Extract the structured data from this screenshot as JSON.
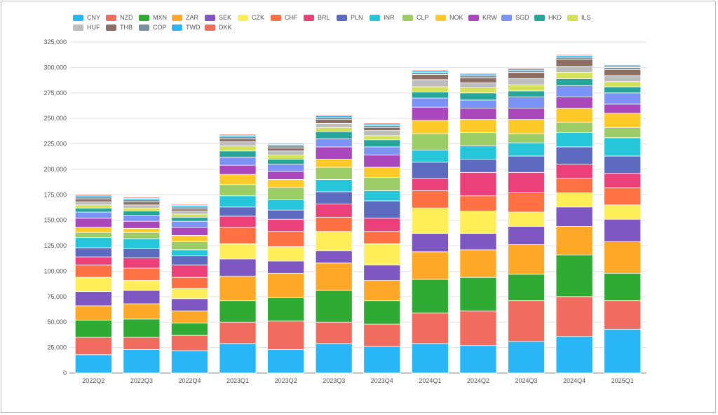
{
  "chart_data": {
    "type": "bar",
    "stacked": true,
    "title": "",
    "xlabel": "",
    "ylabel": "",
    "ylim": [
      0,
      325000
    ],
    "y_ticks": [
      "0",
      "25,000",
      "50,000",
      "75,000",
      "100,000",
      "125,000",
      "150,000",
      "175,000",
      "200,000",
      "225,000",
      "250,000",
      "275,000",
      "300,000",
      "325,000"
    ],
    "grid": true,
    "legend_position": "top",
    "categories": [
      "2022Q2",
      "2022Q3",
      "2022Q4",
      "2023Q1",
      "2023Q2",
      "2023Q3",
      "2023Q4",
      "2024Q1",
      "2024Q2",
      "2024Q3",
      "2024Q4",
      "2025Q1"
    ],
    "series": [
      {
        "name": "CNY",
        "color": "#29b6f6",
        "values": [
          18000,
          23000,
          22000,
          29000,
          23000,
          29000,
          26000,
          29000,
          27000,
          31000,
          36000,
          43000
        ]
      },
      {
        "name": "NZD",
        "color": "#ef6c5e",
        "values": [
          17000,
          12000,
          15000,
          21000,
          28000,
          21000,
          22000,
          30000,
          34000,
          40000,
          39000,
          28000
        ]
      },
      {
        "name": "MXN",
        "color": "#2fab33",
        "values": [
          17000,
          18000,
          12000,
          21000,
          23000,
          31000,
          23000,
          33000,
          33000,
          26000,
          41000,
          27000
        ]
      },
      {
        "name": "ZAR",
        "color": "#ffa726",
        "values": [
          14000,
          15000,
          12000,
          24000,
          24000,
          27000,
          20000,
          27000,
          27000,
          29000,
          28000,
          31000
        ]
      },
      {
        "name": "SEK",
        "color": "#7e57c2",
        "values": [
          14000,
          13000,
          12000,
          17000,
          12000,
          12000,
          15000,
          18000,
          16000,
          18000,
          19000,
          22000
        ]
      },
      {
        "name": "CZK",
        "color": "#ffee58",
        "values": [
          14000,
          10000,
          10000,
          15000,
          14000,
          19000,
          21000,
          25000,
          22000,
          14000,
          14000,
          14000
        ]
      },
      {
        "name": "CHF",
        "color": "#ff7043",
        "values": [
          12000,
          12000,
          11000,
          16000,
          15000,
          14000,
          12000,
          17000,
          15000,
          19000,
          14000,
          17000
        ]
      },
      {
        "name": "BRL",
        "color": "#ec407a",
        "values": [
          8000,
          10000,
          12000,
          11000,
          12000,
          13000,
          13000,
          12000,
          23000,
          20000,
          14000,
          14000
        ]
      },
      {
        "name": "PLN",
        "color": "#5c6bc0",
        "values": [
          9000,
          9000,
          9000,
          9000,
          9000,
          12000,
          17000,
          16000,
          13000,
          16000,
          17000,
          17000
        ]
      },
      {
        "name": "INR",
        "color": "#26c6da",
        "values": [
          10000,
          10000,
          6000,
          11000,
          10000,
          12000,
          10000,
          12000,
          13000,
          13000,
          14000,
          18000
        ]
      },
      {
        "name": "CLP",
        "color": "#9ccc65",
        "values": [
          5000,
          6000,
          8000,
          11000,
          12000,
          12000,
          13000,
          16000,
          13000,
          9000,
          10000,
          10000
        ]
      },
      {
        "name": "NOK",
        "color": "#ffca28",
        "values": [
          5000,
          4000,
          6000,
          10000,
          8000,
          8000,
          10000,
          13000,
          13000,
          14000,
          14000,
          14000
        ]
      },
      {
        "name": "KRW",
        "color": "#ab47bc",
        "values": [
          9000,
          7000,
          8000,
          9000,
          8000,
          12000,
          12000,
          13000,
          11000,
          11000,
          11000,
          9000
        ]
      },
      {
        "name": "SGD",
        "color": "#7b93f7",
        "values": [
          6000,
          6000,
          6000,
          8000,
          7000,
          8000,
          8000,
          9000,
          8000,
          11000,
          11000,
          11000
        ]
      },
      {
        "name": "HKD",
        "color": "#26a69a",
        "values": [
          4000,
          4000,
          4000,
          6000,
          5000,
          7000,
          7000,
          6000,
          7000,
          6000,
          7000,
          6000
        ]
      },
      {
        "name": "ILS",
        "color": "#d4e157",
        "values": [
          3000,
          3000,
          3000,
          5000,
          4000,
          4000,
          4000,
          5000,
          5000,
          6000,
          6000,
          5000
        ]
      },
      {
        "name": "HUF",
        "color": "#bdbdbd",
        "values": [
          3000,
          3000,
          3000,
          4000,
          4000,
          4000,
          5000,
          7000,
          5000,
          6000,
          6000,
          6000
        ]
      },
      {
        "name": "THB",
        "color": "#8d6e63",
        "values": [
          3000,
          3000,
          2000,
          3000,
          3000,
          4000,
          3000,
          5000,
          5000,
          6000,
          7000,
          6000
        ]
      },
      {
        "name": "COP",
        "color": "#78909c",
        "values": [
          2000,
          2000,
          2000,
          2000,
          2000,
          2000,
          2000,
          2000,
          2000,
          2000,
          2000,
          2000
        ]
      },
      {
        "name": "TWD",
        "color": "#29b6f6",
        "values": [
          1500,
          1500,
          1500,
          1500,
          1500,
          1500,
          1500,
          1500,
          1500,
          1500,
          1500,
          1500
        ]
      },
      {
        "name": "DKK",
        "color": "#ef6c5e",
        "values": [
          1000,
          1000,
          1000,
          1000,
          1000,
          1000,
          1000,
          1000,
          1000,
          1000,
          1000,
          1000
        ]
      }
    ]
  }
}
